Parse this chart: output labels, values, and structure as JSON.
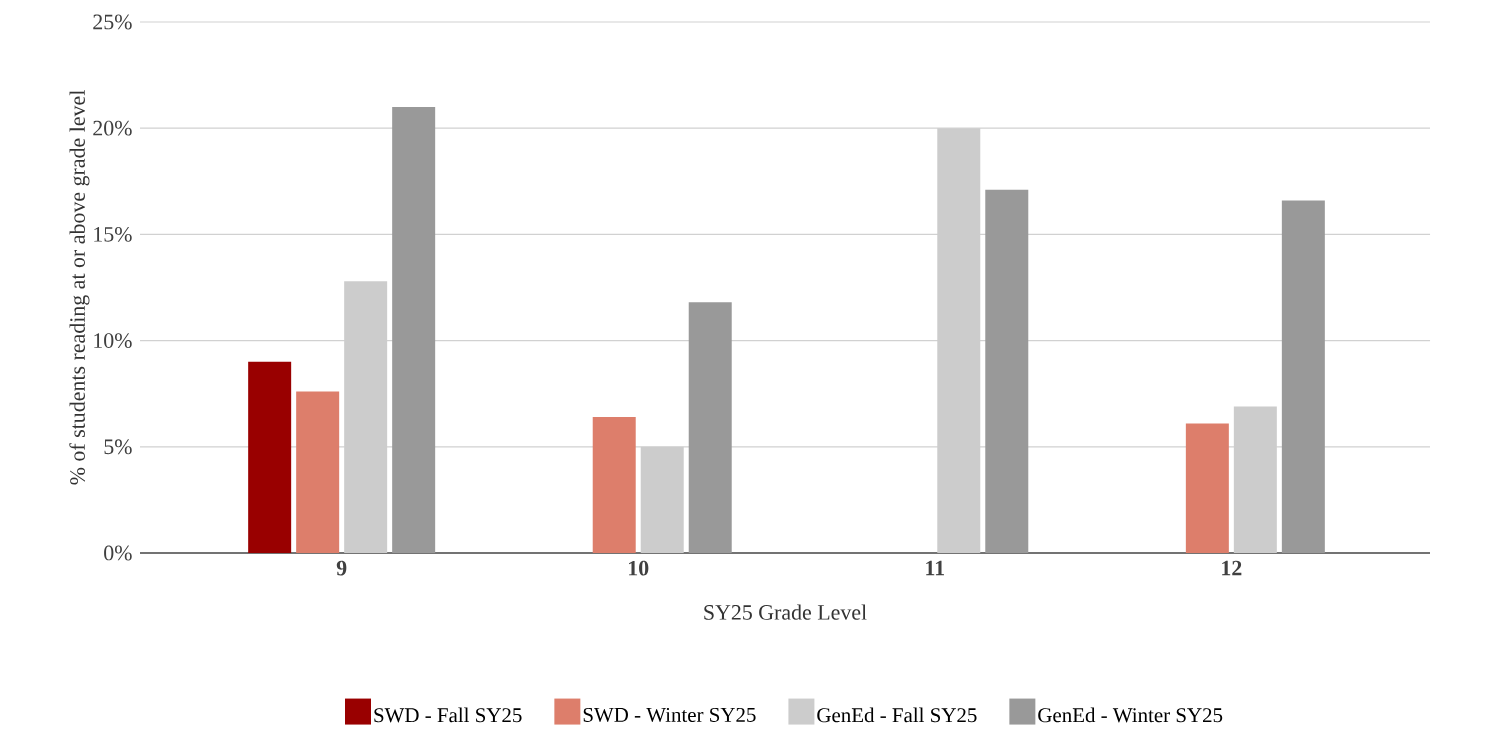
{
  "chart_data": {
    "type": "bar",
    "xlabel": "SY25 Grade Level",
    "ylabel": "% of students reading at or above grade level",
    "categories": [
      "9",
      "10",
      "11",
      "12"
    ],
    "series": [
      {
        "name": "SWD - Fall SY25",
        "color": "#990000",
        "values": [
          9.0,
          0,
          0,
          0
        ]
      },
      {
        "name": "SWD - Winter SY25",
        "color": "#dd7e6b",
        "values": [
          7.6,
          6.4,
          0,
          6.1
        ]
      },
      {
        "name": "GenEd - Fall SY25",
        "color": "#cccccc",
        "values": [
          12.8,
          5.0,
          20.0,
          6.9
        ]
      },
      {
        "name": "GenEd - Winter SY25",
        "color": "#999999",
        "values": [
          21.0,
          11.8,
          17.1,
          16.6
        ]
      }
    ],
    "ylim": [
      0,
      25
    ],
    "yticks": [
      {
        "value": 0,
        "label": "0%"
      },
      {
        "value": 5,
        "label": "5%"
      },
      {
        "value": 10,
        "label": "10%"
      },
      {
        "value": 15,
        "label": "15%"
      },
      {
        "value": 20,
        "label": "20%"
      },
      {
        "value": 25,
        "label": "25%"
      }
    ],
    "grid": "y",
    "legend": "bottom"
  }
}
